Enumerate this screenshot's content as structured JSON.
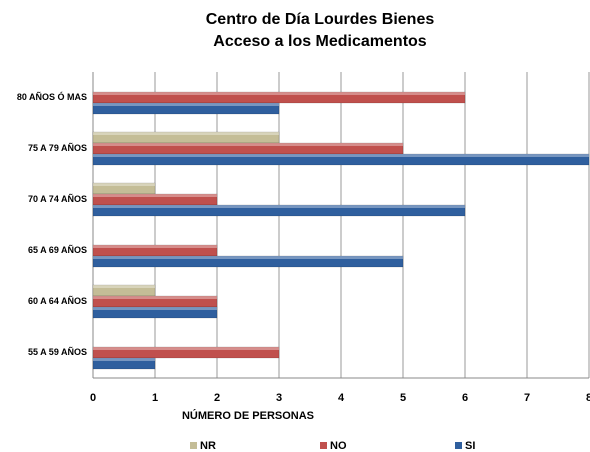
{
  "chart_data": {
    "type": "hbar",
    "title": [
      "Centro de Día Lourdes Bienes",
      "Acceso a los Medicamentos"
    ],
    "categories": [
      "80 AÑOS Ó MAS",
      "75 A 79 AÑOS",
      "70 A 74 AÑOS",
      "65 A 69 AÑOS",
      "60 A 64 AÑOS",
      "55 A 59 AÑOS"
    ],
    "series": [
      {
        "name": "NR",
        "color": "#c4bd97",
        "values": [
          0,
          3,
          1,
          0,
          1,
          0
        ]
      },
      {
        "name": "NO",
        "color": "#c0504d",
        "values": [
          6,
          5,
          2,
          2,
          2,
          3
        ]
      },
      {
        "name": "SI",
        "color": "#2f5f9e",
        "values": [
          3,
          8,
          6,
          5,
          2,
          1
        ]
      }
    ],
    "xlabel": "NÚMERO DE PERSONAS",
    "xlim": [
      0,
      8
    ],
    "xticks": [
      0,
      1,
      2,
      3,
      4,
      5,
      6,
      7,
      8
    ],
    "grid": true,
    "legend": "bottom"
  }
}
